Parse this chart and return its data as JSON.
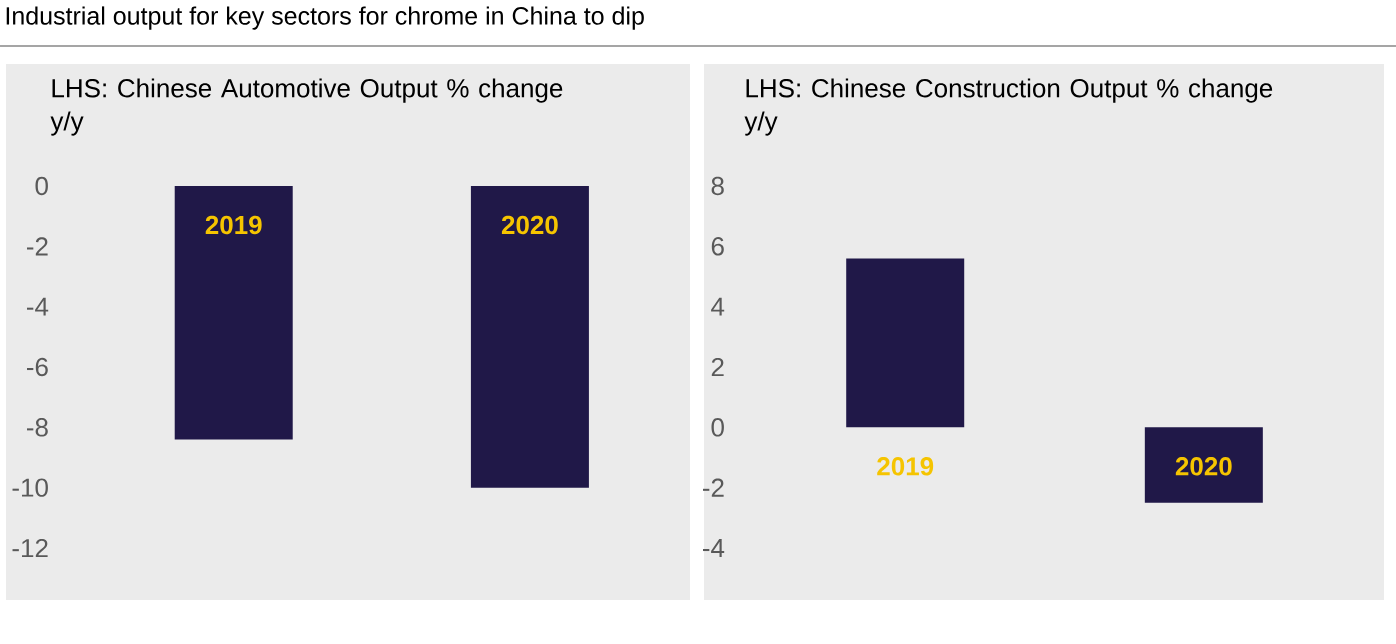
{
  "chart_data": [
    {
      "type": "bar",
      "title": "Industrial output for key sectors for chrome in China to dip",
      "ylabel": "LHS: Chinese Automotive Output % change y/y",
      "categories": [
        "2019",
        "2020"
      ],
      "values": [
        -8.4,
        -10.0
      ],
      "color": "#201848",
      "ylim": [
        -12,
        0
      ],
      "yticks": [
        0,
        -2,
        -4,
        -6,
        -8,
        -10,
        -12
      ]
    },
    {
      "type": "bar",
      "ylabel": "LHS: Chinese Construction Output % change y/y",
      "categories": [
        "2019",
        "2020"
      ],
      "values": [
        5.6,
        -2.5
      ],
      "color": "#201848",
      "ylim": [
        -4,
        8
      ],
      "yticks": [
        8,
        6,
        4,
        2,
        0,
        -2,
        -4
      ]
    }
  ]
}
